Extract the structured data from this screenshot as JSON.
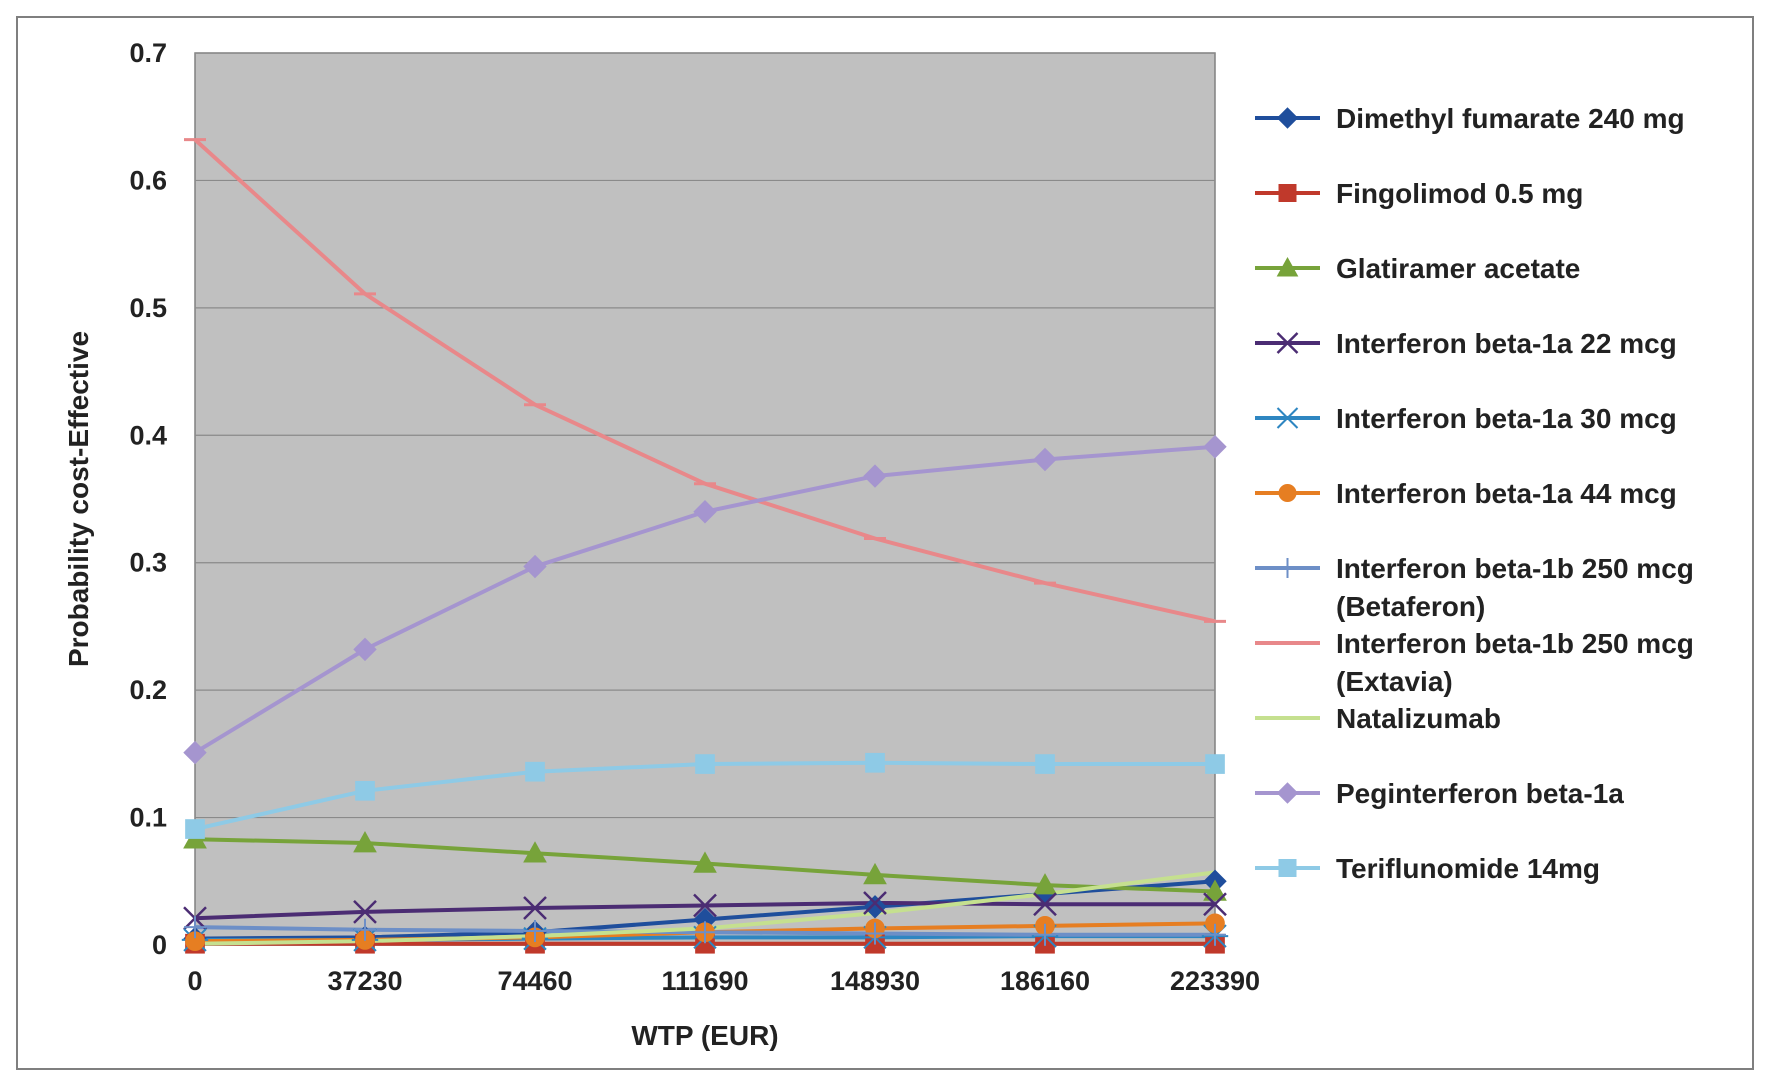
{
  "chart_data": {
    "type": "line",
    "title": "",
    "xlabel": "WTP (EUR)",
    "ylabel": "Probability cost-Effective",
    "ylim": [
      0,
      0.7
    ],
    "yticks": [
      "0",
      "0.1",
      "0.2",
      "0.3",
      "0.4",
      "0.5",
      "0.6",
      "0.7"
    ],
    "yticks_values": [
      0,
      0.1,
      0.2,
      0.3,
      0.4,
      0.5,
      0.6,
      0.7
    ],
    "x": [
      "0",
      "37230",
      "74460",
      "111690",
      "148930",
      "186160",
      "223390"
    ],
    "grid": "horizontal",
    "plot_background": "#c0c0c0",
    "legend_position": "right",
    "series": [
      {
        "name": "Dimethyl fumarate 240 mg",
        "color": "#1f4e9c",
        "marker": "diamond",
        "values": [
          0.005,
          0.006,
          0.01,
          0.02,
          0.03,
          0.04,
          0.05
        ]
      },
      {
        "name": "Fingolimod 0.5 mg",
        "color": "#c0392b",
        "marker": "square",
        "values": [
          0.001,
          0.001,
          0.001,
          0.001,
          0.001,
          0.001,
          0.001
        ]
      },
      {
        "name": "Glatiramer acetate",
        "color": "#77a33a",
        "marker": "triangle",
        "values": [
          0.083,
          0.08,
          0.072,
          0.064,
          0.055,
          0.047,
          0.042
        ]
      },
      {
        "name": "Interferon beta-1a 22 mcg",
        "color": "#4b2c73",
        "marker": "x",
        "values": [
          0.021,
          0.026,
          0.029,
          0.031,
          0.033,
          0.032,
          0.032
        ]
      },
      {
        "name": "Interferon beta-1a 30 mcg",
        "color": "#2e86c1",
        "marker": "star",
        "values": [
          0.004,
          0.004,
          0.005,
          0.006,
          0.006,
          0.007,
          0.007
        ]
      },
      {
        "name": "Interferon beta-1a 44 mcg",
        "color": "#e67e22",
        "marker": "circle",
        "values": [
          0.003,
          0.004,
          0.006,
          0.01,
          0.013,
          0.015,
          0.017
        ]
      },
      {
        "name": "Interferon beta-1b 250 mcg",
        "name2": "(Betaferon)",
        "color": "#6d8fc7",
        "marker": "plus",
        "values": [
          0.014,
          0.012,
          0.011,
          0.01,
          0.009,
          0.008,
          0.008
        ]
      },
      {
        "name": "Interferon beta-1b 250 mcg",
        "name2": "(Extavia)",
        "color": "#e8888a",
        "marker": "dash",
        "values": [
          0.632,
          0.511,
          0.424,
          0.362,
          0.319,
          0.284,
          0.254
        ]
      },
      {
        "name": "Natalizumab",
        "color": "#c5e08f",
        "marker": "none",
        "values": [
          0.001,
          0.003,
          0.007,
          0.013,
          0.025,
          0.04,
          0.057
        ]
      },
      {
        "name": "Peginterferon beta-1a",
        "color": "#a595cf",
        "marker": "diamond",
        "values": [
          0.151,
          0.232,
          0.297,
          0.34,
          0.368,
          0.381,
          0.391
        ]
      },
      {
        "name": "Teriflunomide 14mg",
        "color": "#8ecae6",
        "marker": "square",
        "values": [
          0.091,
          0.121,
          0.136,
          0.142,
          0.143,
          0.142,
          0.142
        ]
      }
    ]
  }
}
